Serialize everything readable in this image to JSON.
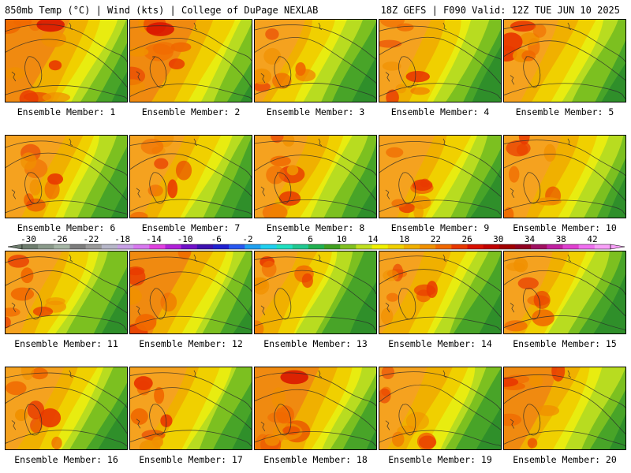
{
  "header": {
    "left_title": "850mb Temp (°C) | Wind (kts) | College of DuPage NEXLAB",
    "right_title": "18Z GEFS | F090 Valid: 12Z TUE JUN 10 2025"
  },
  "label_prefix": "Ensemble Member: ",
  "members": [
    {
      "label": "Ensemble Member: 1",
      "warmth": 0.78
    },
    {
      "label": "Ensemble Member: 2",
      "warmth": 0.85
    },
    {
      "label": "Ensemble Member: 3",
      "warmth": 0.55
    },
    {
      "label": "Ensemble Member: 4",
      "warmth": 0.62
    },
    {
      "label": "Ensemble Member: 5",
      "warmth": 0.7
    },
    {
      "label": "Ensemble Member: 6",
      "warmth": 0.7
    },
    {
      "label": "Ensemble Member: 7",
      "warmth": 0.66
    },
    {
      "label": "Ensemble Member: 8",
      "warmth": 0.68
    },
    {
      "label": "Ensemble Member: 9",
      "warmth": 0.65
    },
    {
      "label": "Ensemble Member: 10",
      "warmth": 0.72
    },
    {
      "label": "Ensemble Member: 11",
      "warmth": 0.63
    },
    {
      "label": "Ensemble Member: 12",
      "warmth": 0.74
    },
    {
      "label": "Ensemble Member: 13",
      "warmth": 0.52
    },
    {
      "label": "Ensemble Member: 14",
      "warmth": 0.6
    },
    {
      "label": "Ensemble Member: 15",
      "warmth": 0.58
    },
    {
      "label": "Ensemble Member: 16",
      "warmth": 0.64
    },
    {
      "label": "Ensemble Member: 17",
      "warmth": 0.66
    },
    {
      "label": "Ensemble Member: 18",
      "warmth": 0.82
    },
    {
      "label": "Ensemble Member: 19",
      "warmth": 0.62
    },
    {
      "label": "Ensemble Member: 20",
      "warmth": 0.74
    }
  ],
  "colorbar": {
    "ticks": [
      "-30",
      "-26",
      "-22",
      "-18",
      "-14",
      "-10",
      "-6",
      "-2",
      "2",
      "6",
      "10",
      "14",
      "18",
      "22",
      "26",
      "30",
      "34",
      "38",
      "42"
    ],
    "colors": [
      "#6e7d6e",
      "#8a9a8a",
      "#a5b5a5",
      "#7d7d7d",
      "#9a9a9a",
      "#b6b6c8",
      "#c8a0e6",
      "#d878f0",
      "#e040e0",
      "#b020d8",
      "#7010c8",
      "#3c10b0",
      "#2020d0",
      "#2858f0",
      "#20a0f0",
      "#20d0f0",
      "#20e0c0",
      "#20c890",
      "#20b050",
      "#40a020",
      "#80c020",
      "#c0e020",
      "#f0f000",
      "#f0d000",
      "#f0b000",
      "#f09000",
      "#f06800",
      "#e83800",
      "#d81000",
      "#c00000",
      "#a00000",
      "#900020",
      "#a01060",
      "#c020a0",
      "#e040d0",
      "#f070f0",
      "#f8a0f8"
    ]
  }
}
